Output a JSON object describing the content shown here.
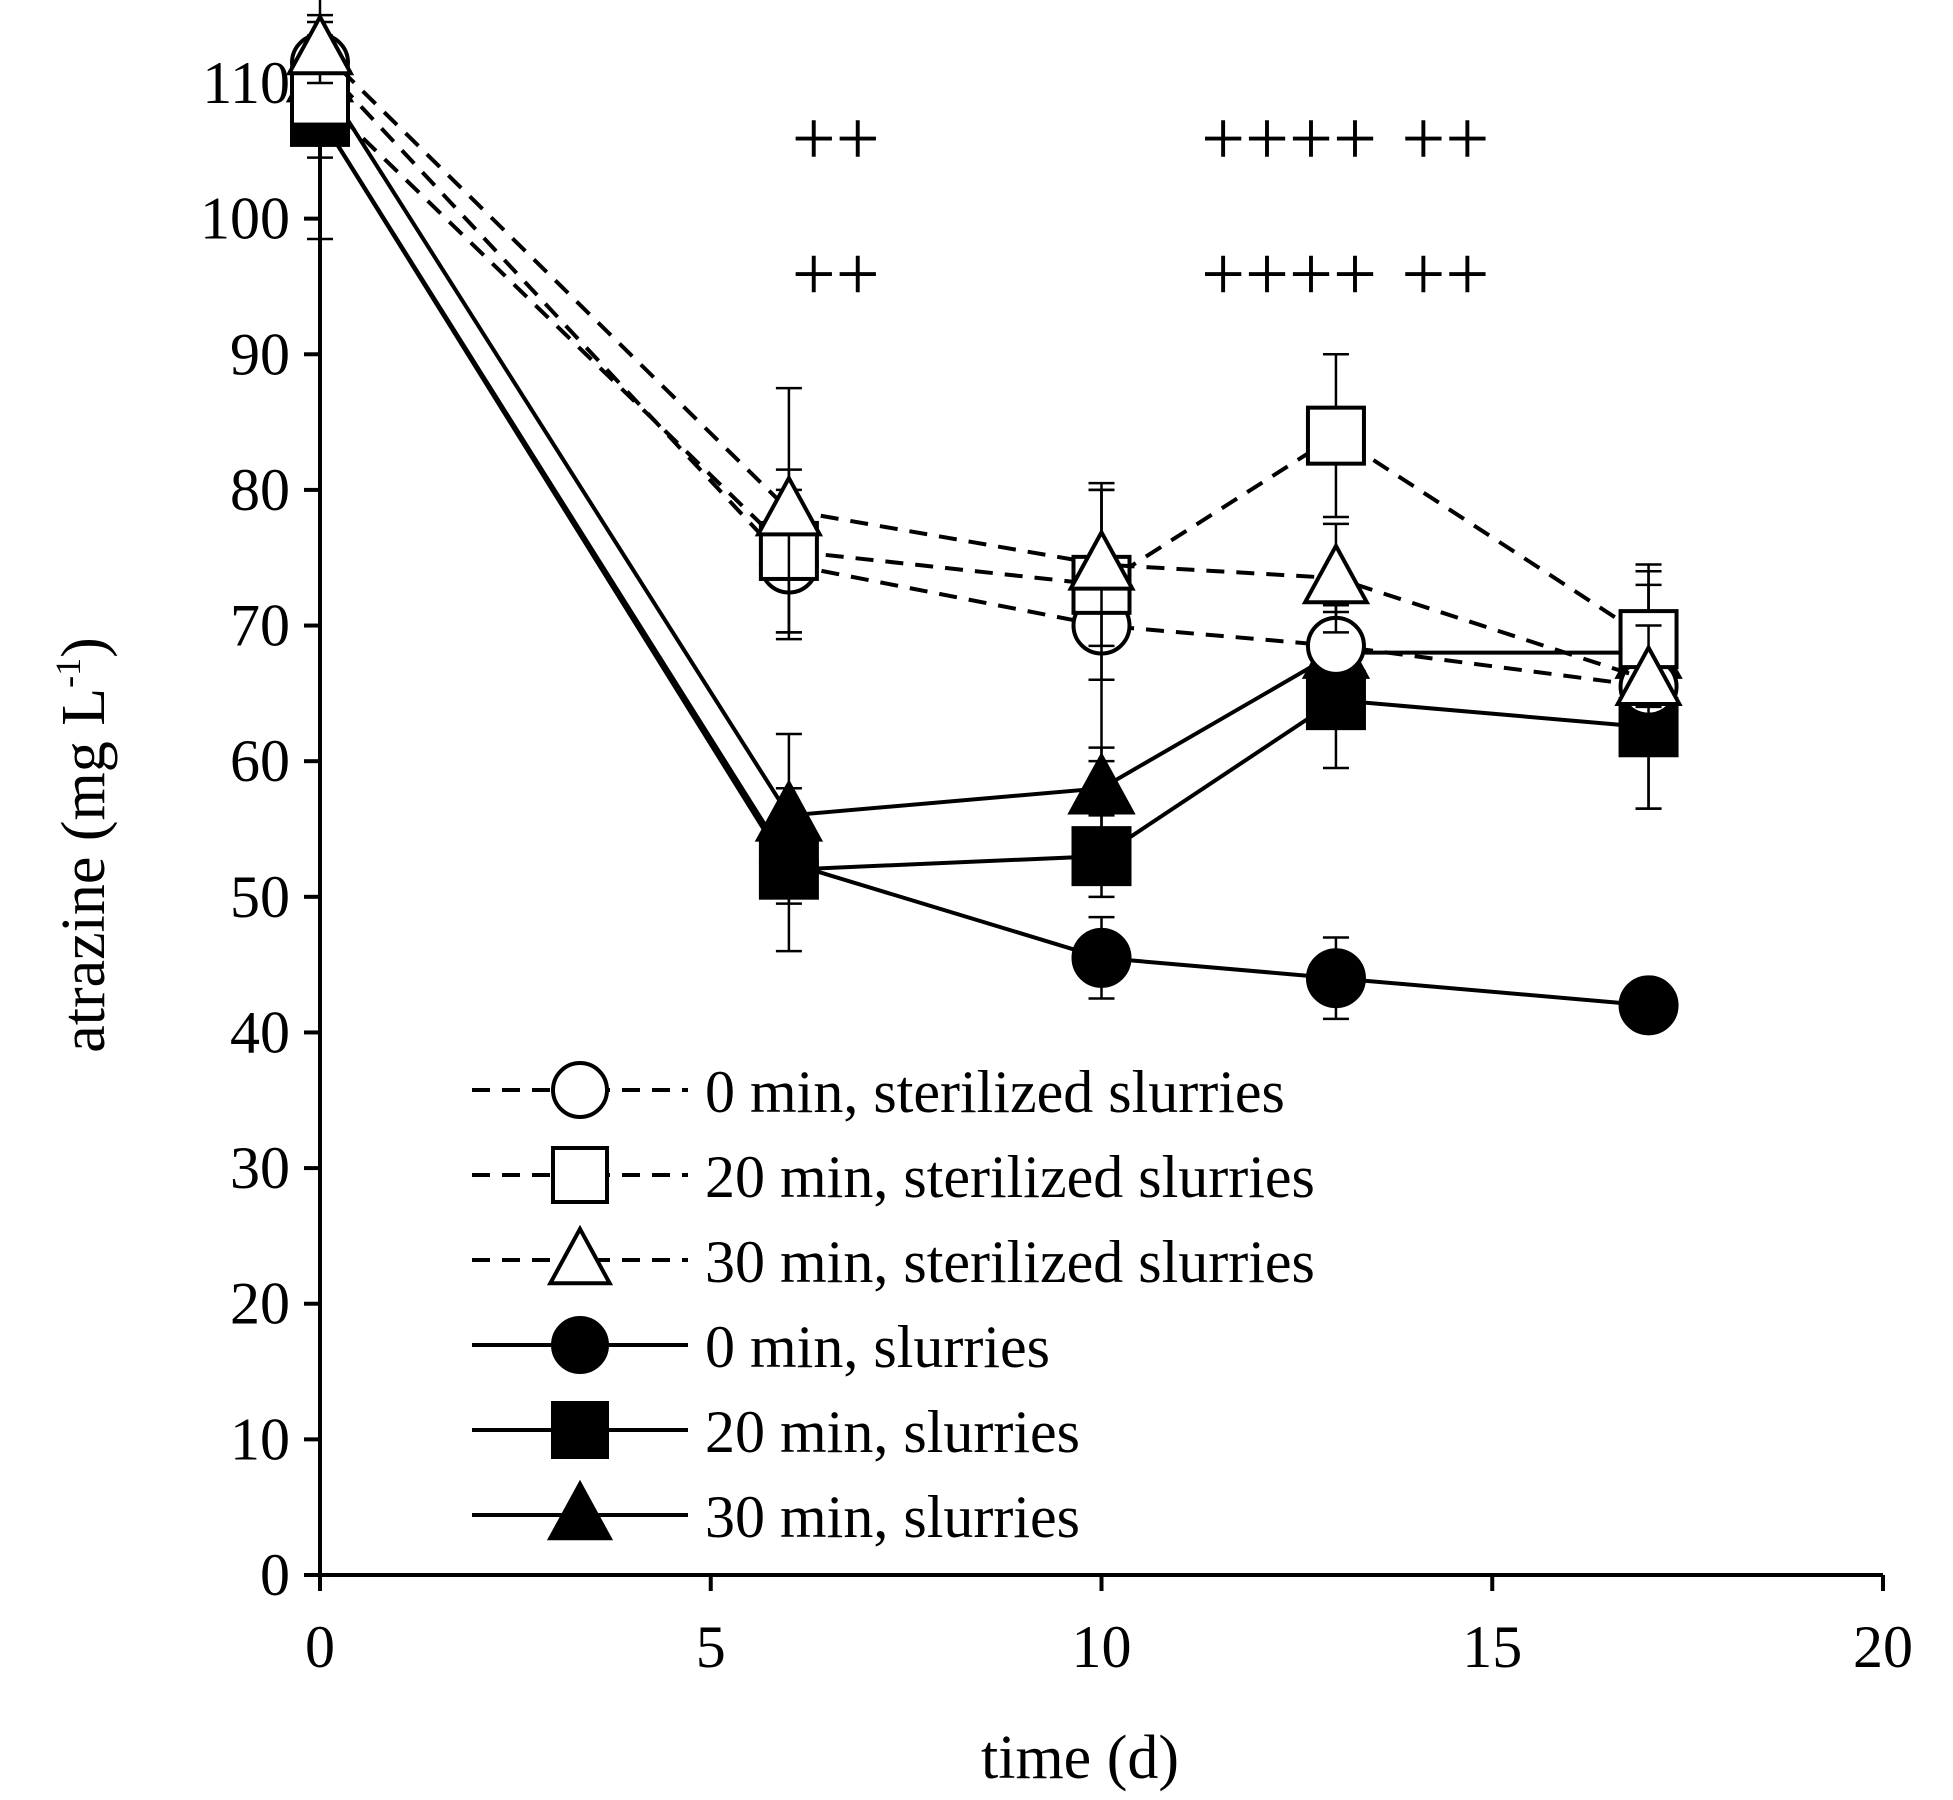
{
  "chart_data": {
    "type": "line",
    "xlabel": "time (d)",
    "ylabel": {
      "text": "atrazine (mg L",
      "superscript": "-1",
      "close": ")"
    },
    "xlim": [
      0,
      20
    ],
    "ylim": [
      0,
      110
    ],
    "xticks": [
      0,
      5,
      10,
      15,
      20
    ],
    "yticks": [
      0,
      10,
      20,
      30,
      40,
      50,
      60,
      70,
      80,
      90,
      100,
      110
    ],
    "grid": false,
    "legend_position": "bottom-left",
    "significance_marks": [
      {
        "x": 6.6,
        "row": "upper",
        "text": "++"
      },
      {
        "x": 12.4,
        "row": "upper",
        "text": "++++"
      },
      {
        "x": 14.4,
        "row": "upper",
        "text": "++"
      },
      {
        "x": 6.6,
        "row": "lower",
        "text": "++"
      },
      {
        "x": 12.4,
        "row": "lower",
        "text": "++++"
      },
      {
        "x": 14.4,
        "row": "lower",
        "text": "++"
      }
    ],
    "series": [
      {
        "name": "0 min, sterilized slurries",
        "line": "dashed",
        "marker": "circle",
        "filled": false,
        "x": [
          0,
          6,
          10,
          13,
          17
        ],
        "y": [
          111.5,
          74.5,
          70,
          68.5,
          65.5
        ],
        "err": [
          3,
          5.5,
          10,
          3,
          9
        ]
      },
      {
        "name": "20 min, sterilized slurries",
        "line": "dashed",
        "marker": "square",
        "filled": false,
        "x": [
          0,
          6,
          10,
          13,
          17
        ],
        "y": [
          109,
          75.5,
          73,
          84,
          69
        ],
        "err": [
          3,
          6,
          7,
          6,
          5
        ]
      },
      {
        "name": "30 min, sterilized slurries",
        "line": "dashed",
        "marker": "triangle",
        "filled": false,
        "x": [
          0,
          6,
          10,
          13,
          17
        ],
        "y": [
          112.5,
          78.5,
          74.5,
          73.5,
          66
        ],
        "err": [
          2.5,
          9,
          6,
          4,
          4
        ]
      },
      {
        "name": "0 min, slurries",
        "line": "solid",
        "marker": "circle",
        "filled": true,
        "x": [
          0,
          6,
          10,
          13,
          17
        ],
        "y": [
          107.5,
          52.5,
          45.5,
          44,
          42
        ],
        "err": [
          9,
          3,
          3,
          3,
          1
        ]
      },
      {
        "name": "20 min, slurries",
        "line": "solid",
        "marker": "square",
        "filled": true,
        "x": [
          0,
          6,
          10,
          13,
          17
        ],
        "y": [
          107.5,
          52,
          53,
          64.5,
          62.5
        ],
        "err": [
          3,
          6,
          3,
          5,
          6
        ]
      },
      {
        "name": "30 min, slurries",
        "line": "solid",
        "marker": "triangle",
        "filled": true,
        "x": [
          0,
          6,
          10,
          13,
          17
        ],
        "y": [
          110.5,
          56,
          58,
          68,
          68
        ],
        "err": [
          3,
          6,
          3,
          3,
          5
        ]
      }
    ]
  }
}
